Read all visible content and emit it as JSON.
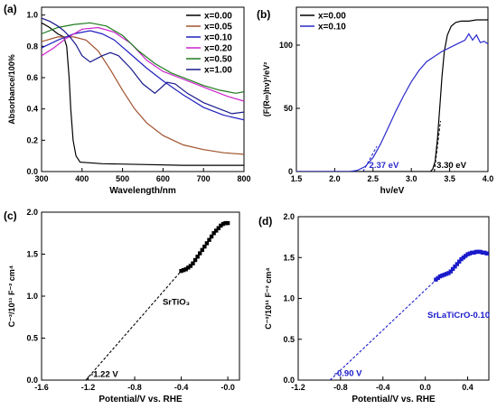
{
  "chart_data": [
    {
      "panel_label": "(a)",
      "type": "line",
      "xlabel": "Wavelength/nm",
      "ylabel": "Absorbance/100%",
      "xlim": [
        300,
        800
      ],
      "ylim": [
        0,
        1.05
      ],
      "x_ticks": [
        "300",
        "400",
        "500",
        "600",
        "700",
        "800"
      ],
      "y_ticks": [
        "0.0",
        "0.2",
        "0.4",
        "0.6",
        "0.8",
        "1.0"
      ],
      "legend_placement": "top-right",
      "grid": false,
      "series": [
        {
          "name": "x=0.00",
          "color": "#000000",
          "points": [
            [
              300,
              0.95
            ],
            [
              320,
              0.92
            ],
            [
              340,
              0.88
            ],
            [
              355,
              0.86
            ],
            [
              362,
              0.8
            ],
            [
              368,
              0.6
            ],
            [
              372,
              0.4
            ],
            [
              378,
              0.2
            ],
            [
              385,
              0.1
            ],
            [
              395,
              0.06
            ],
            [
              450,
              0.05
            ],
            [
              550,
              0.045
            ],
            [
              650,
              0.04
            ],
            [
              800,
              0.04
            ]
          ]
        },
        {
          "name": "x=0.05",
          "color": "#a0522d",
          "points": [
            [
              300,
              0.83
            ],
            [
              340,
              0.86
            ],
            [
              380,
              0.86
            ],
            [
              410,
              0.84
            ],
            [
              440,
              0.77
            ],
            [
              470,
              0.65
            ],
            [
              500,
              0.52
            ],
            [
              530,
              0.4
            ],
            [
              560,
              0.31
            ],
            [
              600,
              0.23
            ],
            [
              650,
              0.17
            ],
            [
              700,
              0.14
            ],
            [
              750,
              0.12
            ],
            [
              800,
              0.11
            ]
          ]
        },
        {
          "name": "x=0.10",
          "color": "#2020c0",
          "points": [
            [
              300,
              0.79
            ],
            [
              340,
              0.84
            ],
            [
              380,
              0.88
            ],
            [
              420,
              0.9
            ],
            [
              450,
              0.88
            ],
            [
              480,
              0.84
            ],
            [
              520,
              0.75
            ],
            [
              560,
              0.66
            ],
            [
              600,
              0.58
            ],
            [
              650,
              0.49
            ],
            [
              700,
              0.41
            ],
            [
              750,
              0.36
            ],
            [
              800,
              0.33
            ]
          ]
        },
        {
          "name": "x=0.20",
          "color": "#cc22cc",
          "points": [
            [
              300,
              0.74
            ],
            [
              330,
              0.79
            ],
            [
              360,
              0.85
            ],
            [
              400,
              0.91
            ],
            [
              440,
              0.92
            ],
            [
              480,
              0.89
            ],
            [
              520,
              0.82
            ],
            [
              560,
              0.71
            ],
            [
              600,
              0.64
            ],
            [
              640,
              0.6
            ],
            [
              680,
              0.56
            ],
            [
              720,
              0.52
            ],
            [
              760,
              0.48
            ],
            [
              800,
              0.45
            ]
          ]
        },
        {
          "name": "x=0.50",
          "color": "#1e7a1e",
          "points": [
            [
              300,
              0.88
            ],
            [
              340,
              0.92
            ],
            [
              380,
              0.94
            ],
            [
              420,
              0.95
            ],
            [
              460,
              0.93
            ],
            [
              500,
              0.87
            ],
            [
              540,
              0.77
            ],
            [
              580,
              0.69
            ],
            [
              620,
              0.63
            ],
            [
              660,
              0.59
            ],
            [
              700,
              0.55
            ],
            [
              740,
              0.52
            ],
            [
              780,
              0.5
            ],
            [
              800,
              0.51
            ]
          ]
        },
        {
          "name": "x=1.00",
          "color": "#1a1a8c",
          "points": [
            [
              300,
              0.98
            ],
            [
              320,
              0.96
            ],
            [
              340,
              0.93
            ],
            [
              355,
              0.9
            ],
            [
              370,
              0.86
            ],
            [
              385,
              0.81
            ],
            [
              400,
              0.74
            ],
            [
              420,
              0.7
            ],
            [
              450,
              0.74
            ],
            [
              470,
              0.76
            ],
            [
              490,
              0.74
            ],
            [
              520,
              0.66
            ],
            [
              550,
              0.56
            ],
            [
              580,
              0.5
            ],
            [
              610,
              0.57
            ],
            [
              630,
              0.56
            ],
            [
              660,
              0.5
            ],
            [
              700,
              0.44
            ],
            [
              740,
              0.4
            ],
            [
              770,
              0.37
            ],
            [
              800,
              0.38
            ]
          ]
        }
      ]
    },
    {
      "panel_label": "(b)",
      "type": "line",
      "xlabel": "hν/eV",
      "ylabel": "(F(R∞)hν)²/eV²",
      "xlim": [
        1.5,
        4.0
      ],
      "ylim": [
        0,
        130
      ],
      "x_ticks": [
        "1.5",
        "2.0",
        "2.5",
        "3.0",
        "3.5",
        "4.0"
      ],
      "y_ticks": [
        "0",
        "50",
        "100"
      ],
      "legend_placement": "top-left",
      "annotations": [
        "2.37 eV",
        "3.30 eV"
      ],
      "series": [
        {
          "name": "x=0.00",
          "color": "#000000",
          "points": [
            [
              1.5,
              0
            ],
            [
              3.25,
              0
            ],
            [
              3.28,
              2
            ],
            [
              3.31,
              8
            ],
            [
              3.34,
              25
            ],
            [
              3.37,
              50
            ],
            [
              3.4,
              75
            ],
            [
              3.43,
              95
            ],
            [
              3.47,
              108
            ],
            [
              3.52,
              115
            ],
            [
              3.58,
              118
            ],
            [
              3.65,
              119
            ],
            [
              3.75,
              119
            ],
            [
              3.85,
              120
            ],
            [
              3.95,
              120
            ],
            [
              4.0,
              120
            ]
          ]
        },
        {
          "name": "x=0.10",
          "color": "#2a2acc",
          "points": [
            [
              1.5,
              0
            ],
            [
              2.2,
              0
            ],
            [
              2.3,
              1
            ],
            [
              2.4,
              4
            ],
            [
              2.5,
              11
            ],
            [
              2.6,
              22
            ],
            [
              2.7,
              35
            ],
            [
              2.8,
              48
            ],
            [
              2.9,
              60
            ],
            [
              3.0,
              71
            ],
            [
              3.1,
              80
            ],
            [
              3.2,
              87
            ],
            [
              3.3,
              91
            ],
            [
              3.4,
              95
            ],
            [
              3.5,
              98
            ],
            [
              3.6,
              101
            ],
            [
              3.7,
              104
            ],
            [
              3.75,
              109
            ],
            [
              3.8,
              104
            ],
            [
              3.85,
              108
            ],
            [
              3.9,
              102
            ],
            [
              3.95,
              103
            ],
            [
              4.0,
              101
            ]
          ]
        }
      ],
      "tangents": [
        {
          "color": "#000000",
          "points": [
            [
              3.3,
              0
            ],
            [
              3.38,
              40
            ]
          ]
        },
        {
          "color": "#2a2acc",
          "points": [
            [
              2.37,
              0
            ],
            [
              2.55,
              20
            ]
          ]
        }
      ]
    },
    {
      "panel_label": "(c)",
      "type": "scatter",
      "xlabel": "Potential/V vs. RHE",
      "ylabel": "C⁻²/10¹¹ F⁻² cm⁴",
      "xlim": [
        -1.6,
        0.1
      ],
      "ylim": [
        0,
        2.0
      ],
      "x_ticks": [
        "-1.6",
        "-1.2",
        "-0.8",
        "-0.4",
        "-0.0"
      ],
      "y_ticks": [
        "0.0",
        "0.5",
        "1.0",
        "1.5",
        "2.0"
      ],
      "sample_label": "SrTiO₃",
      "annotation": "-1.22 V",
      "series": [
        {
          "name": "SrTiO₃",
          "color": "#000000",
          "points": [
            [
              -0.4,
              1.3
            ],
            [
              -0.38,
              1.31
            ],
            [
              -0.36,
              1.32
            ],
            [
              -0.34,
              1.34
            ],
            [
              -0.32,
              1.36
            ],
            [
              -0.3,
              1.39
            ],
            [
              -0.28,
              1.43
            ],
            [
              -0.26,
              1.47
            ],
            [
              -0.24,
              1.51
            ],
            [
              -0.22,
              1.55
            ],
            [
              -0.2,
              1.59
            ],
            [
              -0.18,
              1.63
            ],
            [
              -0.16,
              1.67
            ],
            [
              -0.14,
              1.71
            ],
            [
              -0.12,
              1.75
            ],
            [
              -0.1,
              1.78
            ],
            [
              -0.08,
              1.81
            ],
            [
              -0.06,
              1.84
            ],
            [
              -0.04,
              1.86
            ],
            [
              -0.02,
              1.87
            ],
            [
              0.0,
              1.87
            ]
          ]
        }
      ],
      "fit_line": {
        "color": "#000000",
        "points": [
          [
            -1.22,
            0
          ],
          [
            -0.4,
            1.3
          ]
        ]
      }
    },
    {
      "panel_label": "(d)",
      "type": "scatter",
      "xlabel": "Potential/V vs. RHE",
      "ylabel": "C⁻²/10¹¹ F⁻² cm⁴",
      "xlim": [
        -1.2,
        0.6
      ],
      "ylim": [
        0,
        2.0
      ],
      "x_ticks": [
        "-1.2",
        "-0.8",
        "-0.4",
        "0.0",
        "0.4"
      ],
      "y_ticks": [
        "0.0",
        "0.5",
        "1.0",
        "1.5",
        "2.0"
      ],
      "sample_label": "SrLaTiCrO-0.10",
      "annotation": "-0.90 V",
      "series": [
        {
          "name": "SrLaTiCrO-0.10",
          "color": "#1a1acc",
          "points": [
            [
              0.1,
              1.23
            ],
            [
              0.12,
              1.25
            ],
            [
              0.14,
              1.27
            ],
            [
              0.16,
              1.28
            ],
            [
              0.18,
              1.29
            ],
            [
              0.2,
              1.3
            ],
            [
              0.22,
              1.31
            ],
            [
              0.24,
              1.33
            ],
            [
              0.26,
              1.36
            ],
            [
              0.28,
              1.39
            ],
            [
              0.3,
              1.42
            ],
            [
              0.32,
              1.45
            ],
            [
              0.34,
              1.48
            ],
            [
              0.36,
              1.5
            ],
            [
              0.38,
              1.52
            ],
            [
              0.4,
              1.54
            ],
            [
              0.42,
              1.55
            ],
            [
              0.44,
              1.56
            ],
            [
              0.46,
              1.56
            ],
            [
              0.48,
              1.57
            ],
            [
              0.5,
              1.57
            ],
            [
              0.52,
              1.57
            ],
            [
              0.54,
              1.56
            ],
            [
              0.56,
              1.56
            ],
            [
              0.58,
              1.55
            ]
          ]
        }
      ],
      "fit_line": {
        "color": "#1a1acc",
        "points": [
          [
            -0.9,
            0
          ],
          [
            0.12,
            1.25
          ]
        ]
      }
    }
  ]
}
